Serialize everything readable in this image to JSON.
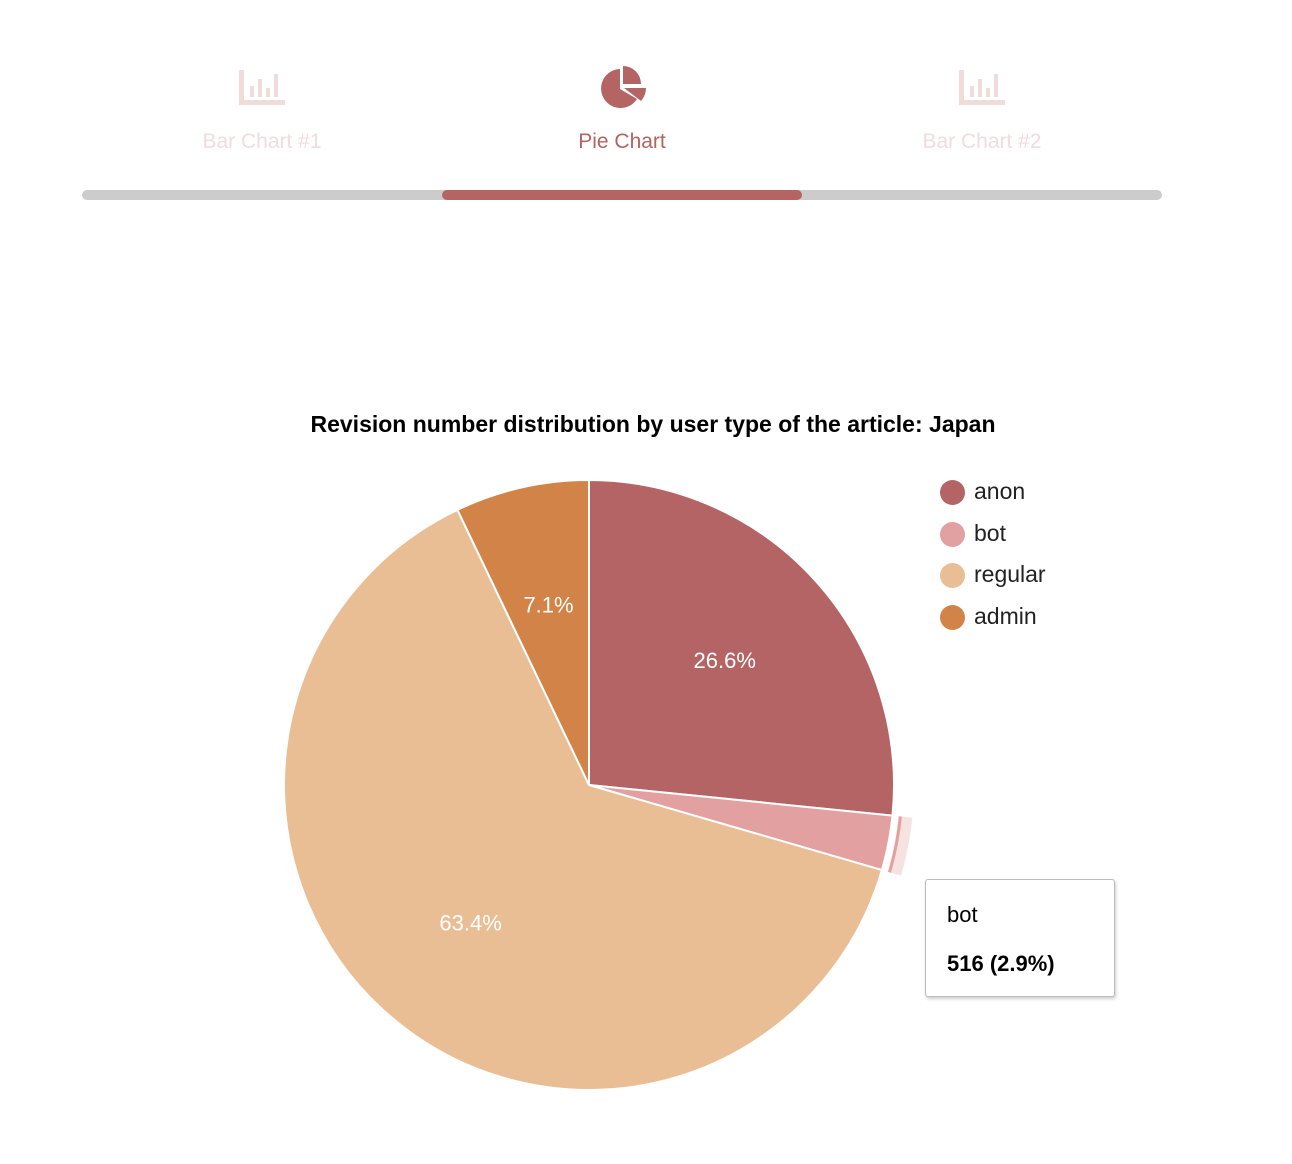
{
  "tabs": [
    {
      "label": "Bar Chart #1",
      "icon": "bar-chart-icon",
      "active": false
    },
    {
      "label": "Pie Chart",
      "icon": "pie-chart-icon",
      "active": true
    },
    {
      "label": "Bar Chart #2",
      "icon": "bar-chart-icon",
      "active": false
    }
  ],
  "colors": {
    "accent": "#b56464",
    "inactive": "#f1dcdc",
    "track": "#cccccc"
  },
  "chart_data": {
    "type": "pie",
    "title": "Revision number distribution by user type of the article: Japan",
    "categories": [
      "anon",
      "bot",
      "regular",
      "admin"
    ],
    "percentages": [
      26.6,
      2.9,
      63.4,
      7.1
    ],
    "slice_labels": [
      "26.6%",
      "",
      "63.4%",
      "7.1%"
    ],
    "colors": [
      "#b46464",
      "#e3a0a0",
      "#eabe94",
      "#d28347"
    ],
    "legend_position": "top-right",
    "highlighted": "bot"
  },
  "tooltip": {
    "name": "bot",
    "value": "516 (2.9%)"
  }
}
